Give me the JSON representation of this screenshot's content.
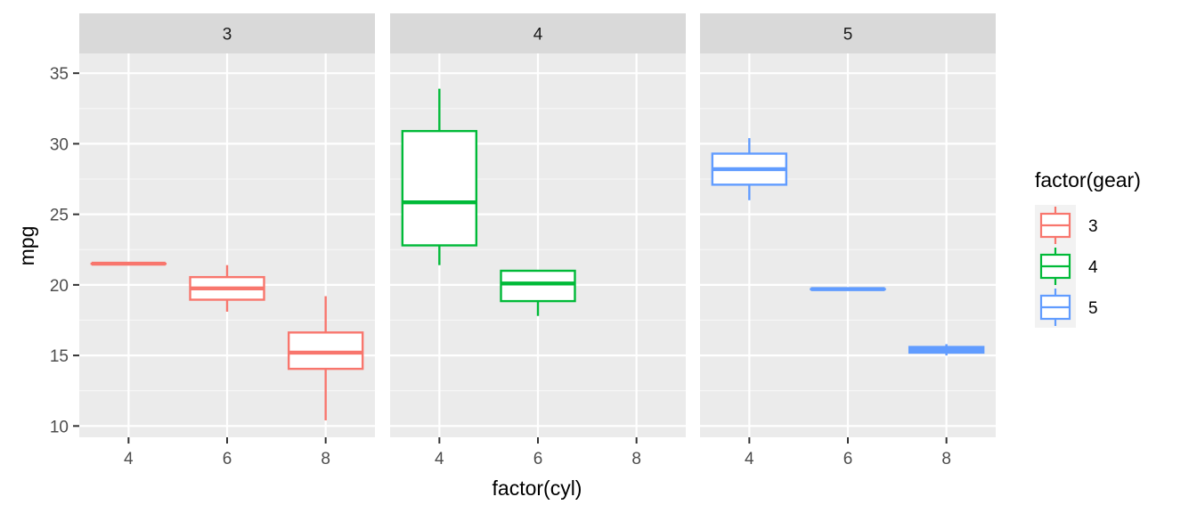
{
  "chart_data": {
    "type": "boxplot",
    "facet_variable": "gear",
    "xlabel": "factor(cyl)",
    "ylabel": "mpg",
    "ylim": [
      9.2,
      36.4
    ],
    "yticks": [
      10,
      15,
      20,
      25,
      30,
      35
    ],
    "categories": [
      "4",
      "6",
      "8"
    ],
    "legend": {
      "title": "factor(gear)",
      "position": "right",
      "entries": [
        "3",
        "4",
        "5"
      ]
    },
    "colors": {
      "3": "#F8766D",
      "4": "#00BA38",
      "5": "#619CFF"
    },
    "facets": [
      {
        "label": "3",
        "gear": "3",
        "boxes": [
          {
            "cyl": "4",
            "min": 21.5,
            "q1": 21.5,
            "median": 21.5,
            "q3": 21.5,
            "max": 21.5
          },
          {
            "cyl": "6",
            "min": 18.1,
            "q1": 18.95,
            "median": 19.75,
            "q3": 20.55,
            "max": 21.4
          },
          {
            "cyl": "8",
            "min": 10.4,
            "q1": 14.05,
            "median": 15.2,
            "q3": 16.625,
            "max": 19.2
          }
        ]
      },
      {
        "label": "4",
        "gear": "4",
        "boxes": [
          {
            "cyl": "4",
            "min": 21.4,
            "q1": 22.8,
            "median": 25.85,
            "q3": 30.9,
            "max": 33.9
          },
          {
            "cyl": "6",
            "min": 17.8,
            "q1": 18.85,
            "median": 20.1,
            "q3": 21.0,
            "max": 21.0
          }
        ]
      },
      {
        "label": "5",
        "gear": "5",
        "boxes": [
          {
            "cyl": "4",
            "min": 26.0,
            "q1": 27.1,
            "median": 28.2,
            "q3": 29.3,
            "max": 30.4
          },
          {
            "cyl": "6",
            "min": 19.7,
            "q1": 19.7,
            "median": 19.7,
            "q3": 19.7,
            "max": 19.7
          },
          {
            "cyl": "8",
            "min": 15.0,
            "q1": 15.2,
            "median": 15.4,
            "q3": 15.6,
            "max": 15.8
          }
        ]
      }
    ]
  }
}
